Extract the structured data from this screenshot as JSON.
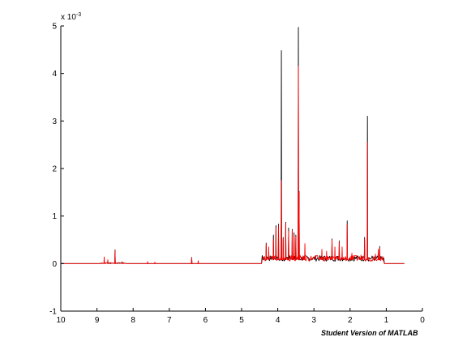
{
  "chart_data": {
    "type": "line",
    "x_direction": "reversed",
    "xlim": [
      0,
      10
    ],
    "ylim": [
      -0.001,
      0.005
    ],
    "xticks": [
      "10",
      "9",
      "8",
      "7",
      "6",
      "5",
      "4",
      "3",
      "2",
      "1",
      "0"
    ],
    "xtick_values": [
      10,
      9,
      8,
      7,
      6,
      5,
      4,
      3,
      2,
      1,
      0
    ],
    "yticks": [
      "-1",
      "0",
      "1",
      "2",
      "3",
      "4",
      "5"
    ],
    "ytick_values": [
      -0.001,
      0,
      0.001,
      0.002,
      0.003,
      0.004,
      0.005
    ],
    "y_exponent": "x 10",
    "y_exponent_power": "-3",
    "grid": false,
    "legend": false,
    "colors": {
      "series_black": "#000000",
      "series_red": "#ff0000",
      "axes": "#000000"
    },
    "baseline": 0.0,
    "series": [
      {
        "color": "#000000",
        "peaks": [
          [
            3.9,
            0.00448
          ],
          [
            3.43,
            0.00497
          ],
          [
            3.41,
            0.00152
          ],
          [
            1.52,
            0.0031
          ],
          [
            2.08,
            0.0009
          ],
          [
            3.78,
            0.00087
          ],
          [
            3.7,
            0.00075
          ],
          [
            3.6,
            0.00072
          ],
          [
            3.98,
            0.00083
          ],
          [
            4.05,
            0.0008
          ],
          [
            4.12,
            0.0006
          ],
          [
            3.55,
            0.00065
          ],
          [
            3.5,
            0.0006
          ],
          [
            3.85,
            0.00055
          ],
          [
            2.5,
            0.00052
          ],
          [
            2.3,
            0.00048
          ],
          [
            4.32,
            0.00043
          ],
          [
            1.18,
            0.00036
          ],
          [
            1.6,
            0.00055
          ],
          [
            8.5,
            0.00029
          ],
          [
            6.38,
            0.00013
          ]
        ]
      },
      {
        "color": "#ff0000",
        "peaks": [
          [
            3.9,
            0.00175
          ],
          [
            3.43,
            0.00415
          ],
          [
            3.41,
            0.0015
          ],
          [
            1.52,
            0.00255
          ],
          [
            2.08,
            0.00082
          ],
          [
            3.78,
            0.00085
          ],
          [
            3.7,
            0.00068
          ],
          [
            3.6,
            0.0007
          ],
          [
            3.98,
            0.0008
          ],
          [
            4.05,
            0.00075
          ],
          [
            4.12,
            0.0005
          ],
          [
            3.55,
            0.00058
          ],
          [
            3.5,
            0.00056
          ],
          [
            3.85,
            0.00052
          ],
          [
            3.25,
            0.00042
          ],
          [
            2.78,
            0.0003
          ],
          [
            2.65,
            0.00026
          ],
          [
            2.5,
            0.0005
          ],
          [
            2.42,
            0.00035
          ],
          [
            2.3,
            0.00046
          ],
          [
            2.22,
            0.00035
          ],
          [
            1.95,
            0.00022
          ],
          [
            1.7,
            0.00018
          ],
          [
            1.6,
            0.00052
          ],
          [
            1.3,
            0.0002
          ],
          [
            1.22,
            0.0003
          ],
          [
            1.18,
            0.00033
          ],
          [
            1.1,
            0.00015
          ],
          [
            4.32,
            0.00042
          ],
          [
            4.25,
            0.00035
          ],
          [
            8.8,
            0.00014
          ],
          [
            8.7,
            8e-05
          ],
          [
            8.5,
            0.00028
          ],
          [
            8.3,
            4e-05
          ],
          [
            7.6,
            4e-05
          ],
          [
            7.4,
            3e-05
          ],
          [
            6.38,
            0.00012
          ],
          [
            6.2,
            6e-05
          ]
        ]
      }
    ]
  },
  "footer": {
    "watermark": "Student Version of MATLAB"
  }
}
